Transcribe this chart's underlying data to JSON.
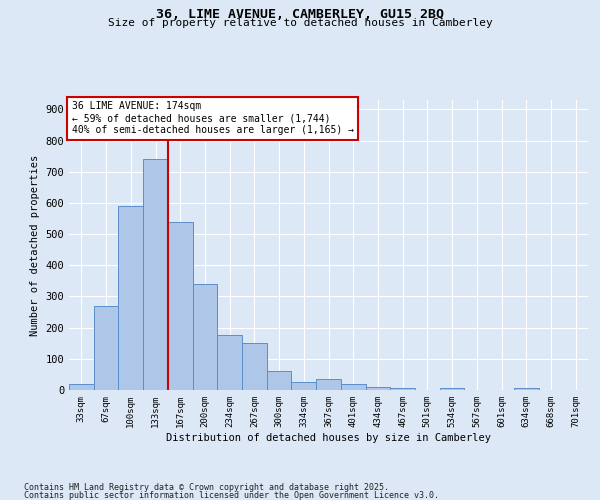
{
  "title_line1": "36, LIME AVENUE, CAMBERLEY, GU15 2BQ",
  "title_line2": "Size of property relative to detached houses in Camberley",
  "xlabel": "Distribution of detached houses by size in Camberley",
  "ylabel": "Number of detached properties",
  "bar_labels": [
    "33sqm",
    "67sqm",
    "100sqm",
    "133sqm",
    "167sqm",
    "200sqm",
    "234sqm",
    "267sqm",
    "300sqm",
    "334sqm",
    "367sqm",
    "401sqm",
    "434sqm",
    "467sqm",
    "501sqm",
    "534sqm",
    "567sqm",
    "601sqm",
    "634sqm",
    "668sqm",
    "701sqm"
  ],
  "bar_values": [
    20,
    270,
    590,
    740,
    540,
    340,
    175,
    150,
    60,
    25,
    35,
    20,
    10,
    5,
    0,
    5,
    0,
    0,
    5,
    0,
    0
  ],
  "bar_color": "#aec6e8",
  "bar_edge_color": "#5b8fc9",
  "vline_x_index": 3.5,
  "vline_color": "#cc0000",
  "annotation_text": "36 LIME AVENUE: 174sqm\n← 59% of detached houses are smaller (1,744)\n40% of semi-detached houses are larger (1,165) →",
  "annotation_box_color": "#cc0000",
  "annotation_bg": "#ffffff",
  "ylim": [
    0,
    930
  ],
  "yticks": [
    0,
    100,
    200,
    300,
    400,
    500,
    600,
    700,
    800,
    900
  ],
  "background_color": "#dce8f5",
  "grid_color": "#ffffff",
  "footnote_line1": "Contains HM Land Registry data © Crown copyright and database right 2025.",
  "footnote_line2": "Contains public sector information licensed under the Open Government Licence v3.0."
}
